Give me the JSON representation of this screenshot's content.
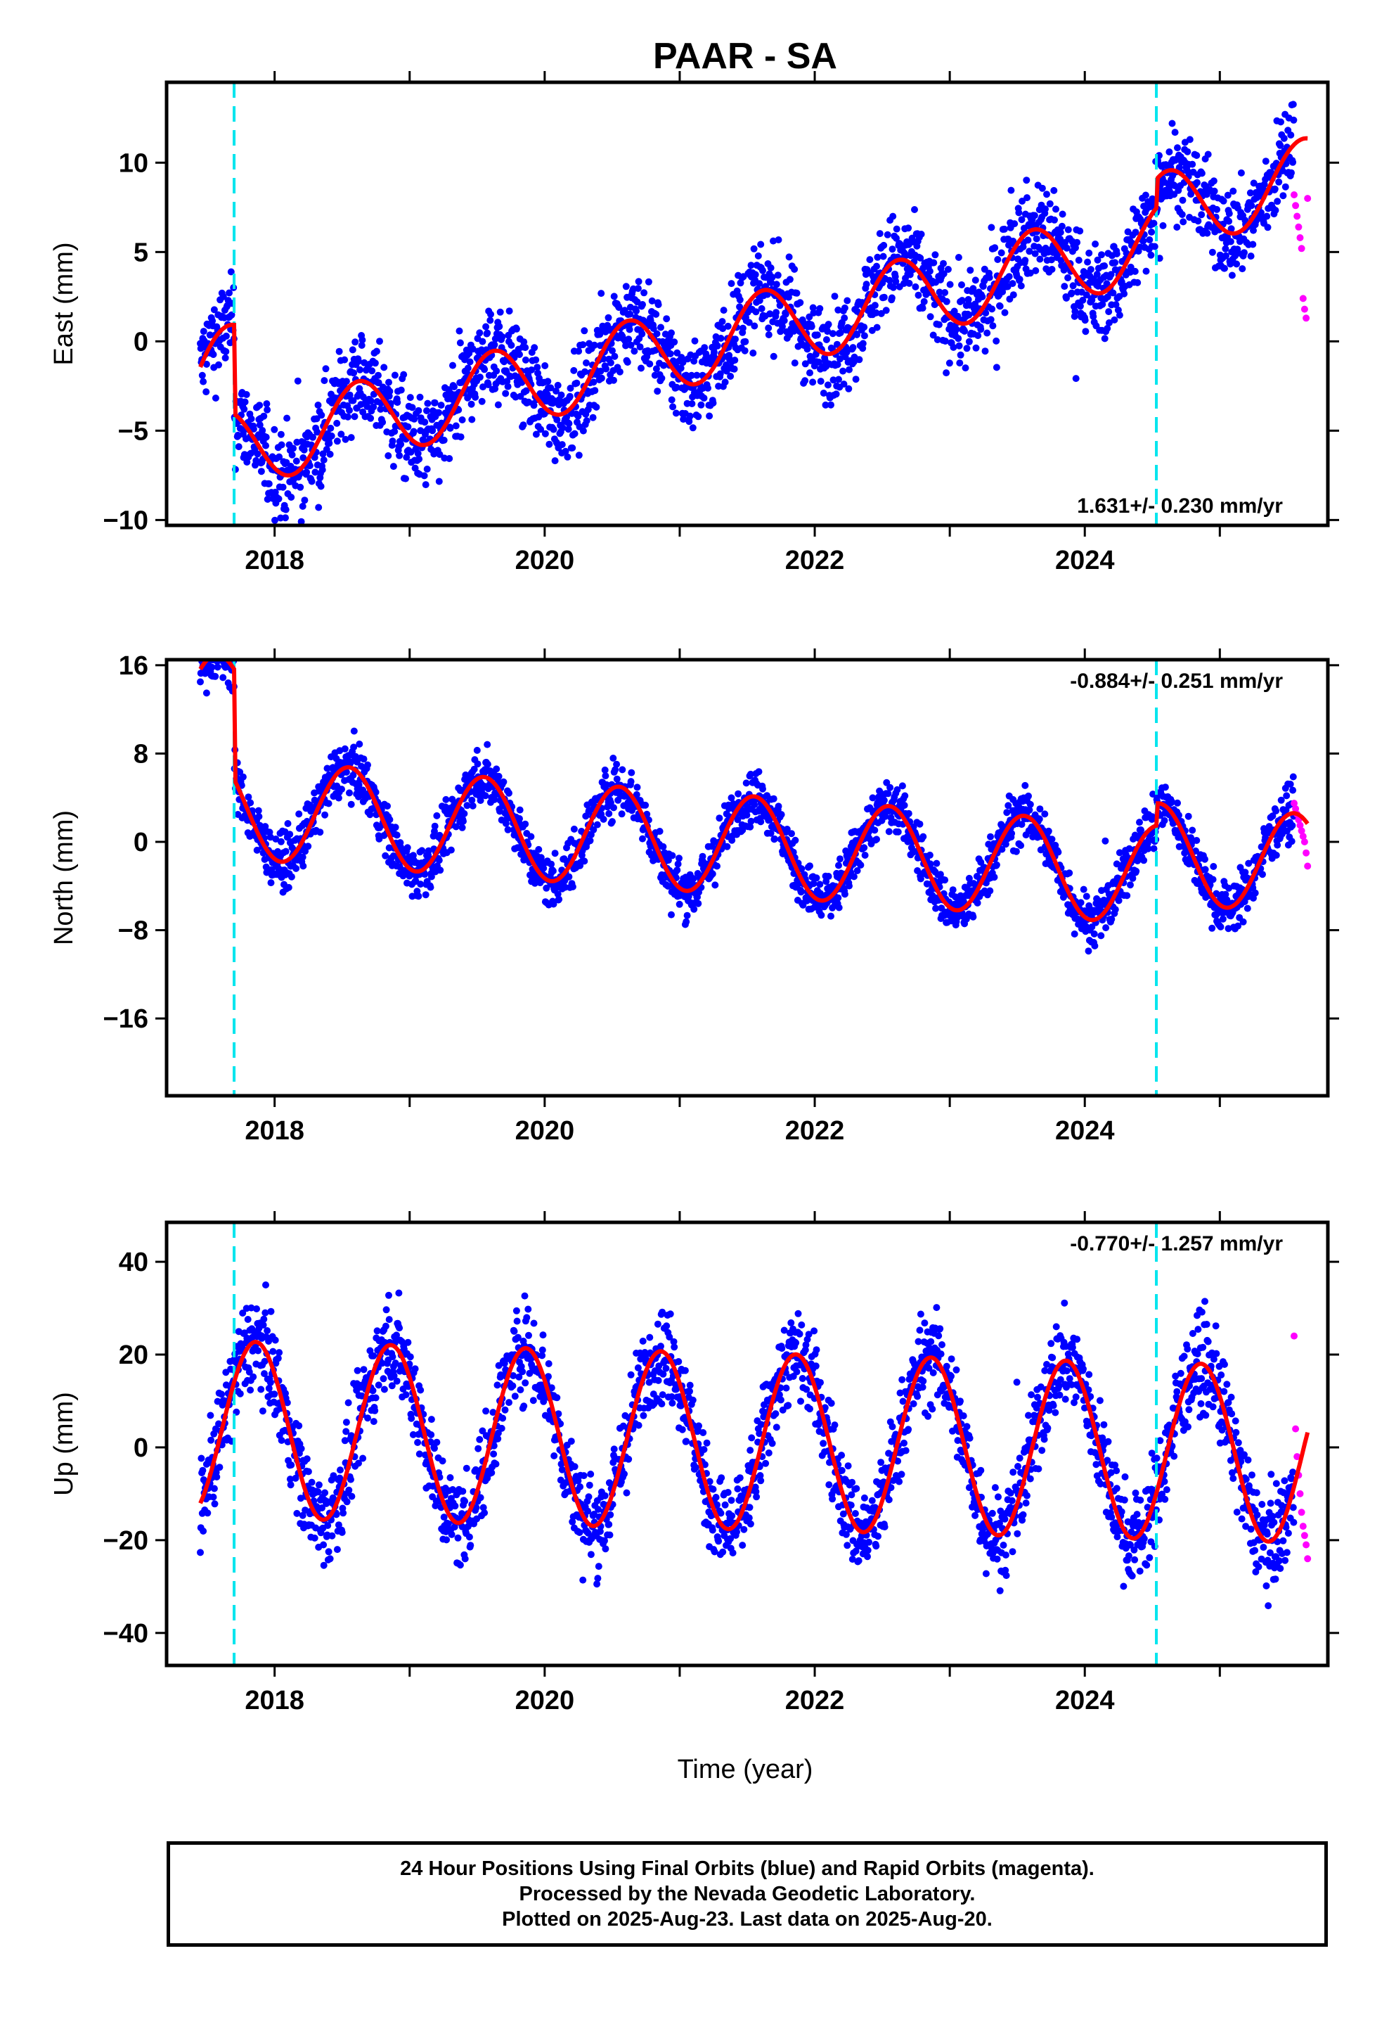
{
  "title": "PAAR - SA",
  "xlabel": "Time (year)",
  "colors": {
    "final": "#0000ff",
    "rapid": "#ff00ff",
    "model": "#ff0000",
    "event": "#00e5ee"
  },
  "events": [
    2017.7,
    2024.53
  ],
  "chart_data": [
    {
      "type": "scatter",
      "panel": "east",
      "ylabel": "East (mm)",
      "xlim": [
        2017.2,
        2025.8
      ],
      "ylim": [
        -10.3,
        14.5
      ],
      "yticks": [
        -10,
        -5,
        0,
        5,
        10
      ],
      "xticks": [
        2018,
        2020,
        2022,
        2024
      ],
      "rate_text": "1.631+/- 0.230 mm/yr",
      "rate_position": "bottom-right",
      "model": {
        "base": 0.0,
        "segments": [
          {
            "x0": 2017.45,
            "x1": 2017.7,
            "v0": -2.5,
            "v1": -1.0
          },
          {
            "x0": 2017.7,
            "x1": 2024.53,
            "v0": -6.0,
            "v1": 5.6
          },
          {
            "x0": 2024.53,
            "x1": 2025.65,
            "v0": 7.2,
            "v1": 9.2
          }
        ],
        "annual_amp": 2.2,
        "annual_phase_peak": 0.62
      },
      "noise": 1.3,
      "rapid": {
        "x0": 2025.55,
        "x1": 2025.65,
        "values": [
          8.2,
          7.6,
          7.0,
          6.4,
          5.8,
          5.2,
          2.4,
          1.8,
          1.3,
          8.0
        ]
      }
    },
    {
      "type": "scatter",
      "panel": "north",
      "ylabel": "North (mm)",
      "xlim": [
        2017.2,
        2025.8
      ],
      "ylim": [
        -23,
        16.5
      ],
      "yticks": [
        -16,
        -8,
        0,
        8,
        16
      ],
      "xticks": [
        2018,
        2020,
        2022,
        2024
      ],
      "rate_text": "-0.884+/- 0.251 mm/yr",
      "rate_position": "top-right",
      "model": {
        "segments": [
          {
            "x0": 2017.45,
            "x1": 2017.7,
            "v0": 12.0,
            "v1": 13.0
          },
          {
            "x0": 2017.7,
            "x1": 2024.53,
            "v0": 3.0,
            "v1": -3.0
          },
          {
            "x0": 2024.53,
            "x1": 2025.65,
            "v0": -1.0,
            "v1": -2.0
          }
        ],
        "annual_amp": 4.5,
        "annual_phase_peak": 0.55
      },
      "noise": 1.2,
      "rapid": {
        "x0": 2025.55,
        "x1": 2025.65,
        "values": [
          3.5,
          3.0,
          2.5,
          2.0,
          1.5,
          1.0,
          0.5,
          0.0,
          -1.0,
          -2.2
        ]
      }
    },
    {
      "type": "scatter",
      "panel": "up",
      "ylabel": "Up (mm)",
      "xlim": [
        2017.2,
        2025.8
      ],
      "ylim": [
        -47,
        48.5
      ],
      "yticks": [
        -40,
        -20,
        0,
        20,
        40
      ],
      "xticks": [
        2018,
        2020,
        2022,
        2024
      ],
      "rate_text": "-0.770+/- 1.257 mm/yr",
      "rate_position": "top-right",
      "model": {
        "segments": [
          {
            "x0": 2017.45,
            "x1": 2025.65,
            "v0": 4.0,
            "v1": -1.5
          }
        ],
        "annual_amp": 19.0,
        "annual_phase_peak": 0.86
      },
      "noise": 5.0,
      "rapid": {
        "x0": 2025.55,
        "x1": 2025.65,
        "values": [
          24.0,
          4.0,
          -2.0,
          -6.0,
          -10.0,
          -14.0,
          -17.0,
          -19.0,
          -21.0,
          -24.0
        ]
      }
    }
  ],
  "footer": {
    "line1": "24 Hour Positions Using Final Orbits (blue) and Rapid Orbits (magenta).",
    "line2": "Processed by the Nevada Geodetic Laboratory.",
    "line3": "Plotted on 2025-Aug-23. Last data on 2025-Aug-20."
  }
}
